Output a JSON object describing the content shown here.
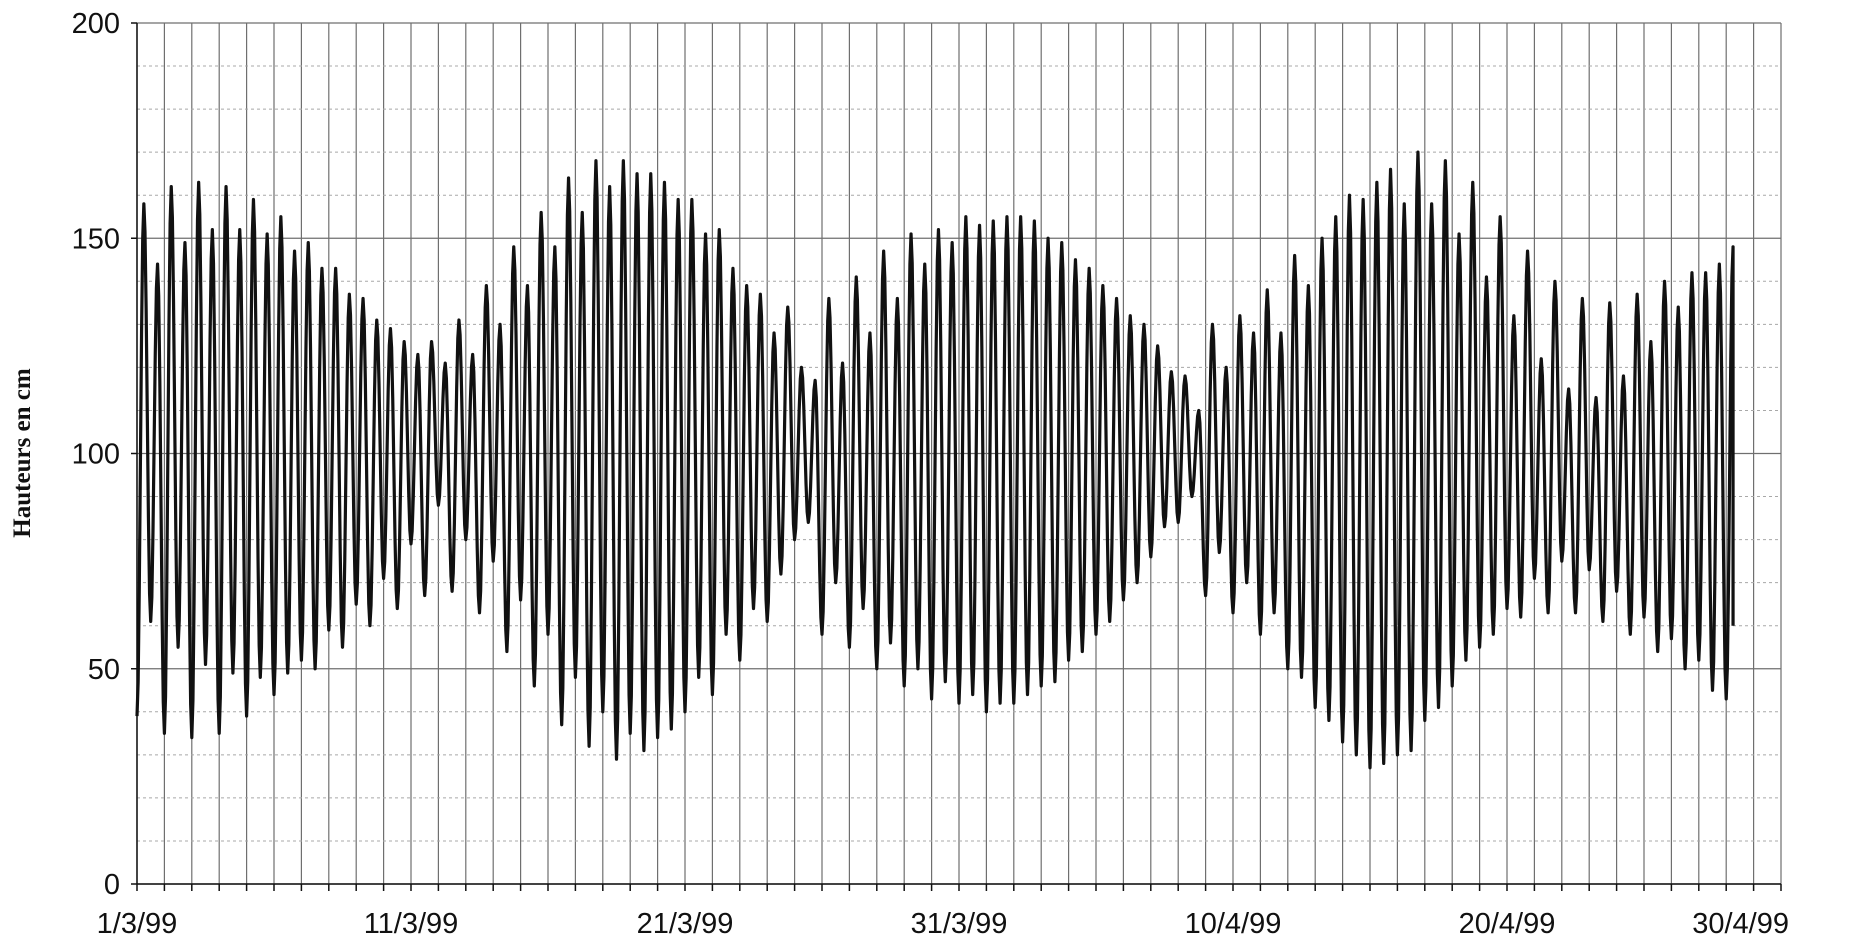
{
  "chart_data": {
    "type": "line",
    "title": "",
    "xlabel": "",
    "ylabel": "Hauteurs en cm",
    "x_tick_labels": [
      "1/3/99",
      "11/3/99",
      "21/3/99",
      "31/3/99",
      "10/4/99",
      "20/4/99",
      "30/4/99"
    ],
    "xlim": [
      "1/3/99",
      "30/4/99"
    ],
    "ylim": [
      0,
      200
    ],
    "y_ticks": [
      0,
      50,
      100,
      150,
      200
    ],
    "grid": true,
    "legend": "none",
    "series_color": "#111111",
    "series": [
      {
        "x_unit": "days since 1/3/99 (00h)",
        "note": "semi-diurnal tide, two high and two low waters per day; extremes read from chart",
        "high_water": [
          [
            0.25,
            158
          ],
          [
            0.75,
            144
          ],
          [
            1.25,
            162
          ],
          [
            1.75,
            149
          ],
          [
            2.25,
            163
          ],
          [
            2.75,
            152
          ],
          [
            3.25,
            162
          ],
          [
            3.75,
            152
          ],
          [
            4.25,
            159
          ],
          [
            4.75,
            151
          ],
          [
            5.25,
            155
          ],
          [
            5.75,
            147
          ],
          [
            6.25,
            149
          ],
          [
            6.75,
            143
          ],
          [
            7.25,
            143
          ],
          [
            7.75,
            137
          ],
          [
            8.25,
            136
          ],
          [
            8.75,
            131
          ],
          [
            9.25,
            129
          ],
          [
            9.75,
            126
          ],
          [
            10.25,
            123
          ],
          [
            10.75,
            126
          ],
          [
            11.25,
            121
          ],
          [
            11.75,
            131
          ],
          [
            12.25,
            123
          ],
          [
            12.75,
            139
          ],
          [
            13.25,
            130
          ],
          [
            13.75,
            148
          ],
          [
            14.25,
            139
          ],
          [
            14.75,
            156
          ],
          [
            15.25,
            148
          ],
          [
            15.75,
            164
          ],
          [
            16.25,
            156
          ],
          [
            16.75,
            168
          ],
          [
            17.25,
            162
          ],
          [
            17.75,
            168
          ],
          [
            18.25,
            165
          ],
          [
            18.75,
            165
          ],
          [
            19.25,
            163
          ],
          [
            19.75,
            159
          ],
          [
            20.25,
            159
          ],
          [
            20.75,
            151
          ],
          [
            21.25,
            152
          ],
          [
            21.75,
            143
          ],
          [
            22.25,
            139
          ],
          [
            22.75,
            137
          ],
          [
            23.25,
            128
          ],
          [
            23.75,
            134
          ],
          [
            24.25,
            120
          ],
          [
            24.75,
            117
          ],
          [
            25.25,
            136
          ],
          [
            25.75,
            121
          ],
          [
            26.25,
            141
          ],
          [
            26.75,
            128
          ],
          [
            27.25,
            147
          ],
          [
            27.75,
            136
          ],
          [
            28.25,
            151
          ],
          [
            28.75,
            144
          ],
          [
            29.25,
            152
          ],
          [
            29.75,
            149
          ],
          [
            30.25,
            155
          ],
          [
            30.75,
            153
          ],
          [
            31.25,
            154
          ],
          [
            31.75,
            155
          ],
          [
            32.25,
            155
          ],
          [
            32.75,
            154
          ],
          [
            33.25,
            150
          ],
          [
            33.75,
            149
          ],
          [
            34.25,
            145
          ],
          [
            34.75,
            143
          ],
          [
            35.25,
            139
          ],
          [
            35.75,
            136
          ],
          [
            36.25,
            132
          ],
          [
            36.75,
            130
          ],
          [
            37.25,
            125
          ],
          [
            37.75,
            119
          ],
          [
            38.25,
            118
          ],
          [
            38.75,
            110
          ],
          [
            39.25,
            130
          ],
          [
            39.75,
            120
          ],
          [
            40.25,
            132
          ],
          [
            40.75,
            128
          ],
          [
            41.25,
            138
          ],
          [
            41.75,
            128
          ],
          [
            42.25,
            146
          ],
          [
            42.75,
            139
          ],
          [
            43.25,
            150
          ],
          [
            43.75,
            155
          ],
          [
            44.25,
            160
          ],
          [
            44.75,
            159
          ],
          [
            45.25,
            163
          ],
          [
            45.75,
            166
          ],
          [
            46.25,
            158
          ],
          [
            46.75,
            170
          ],
          [
            47.25,
            158
          ],
          [
            47.75,
            168
          ],
          [
            48.25,
            151
          ],
          [
            48.75,
            163
          ],
          [
            49.25,
            141
          ],
          [
            49.75,
            155
          ],
          [
            50.25,
            132
          ],
          [
            50.75,
            147
          ],
          [
            51.25,
            122
          ],
          [
            51.75,
            140
          ],
          [
            52.25,
            115
          ],
          [
            52.75,
            136
          ],
          [
            53.25,
            113
          ],
          [
            53.75,
            135
          ],
          [
            54.25,
            118
          ],
          [
            54.75,
            137
          ],
          [
            55.25,
            126
          ],
          [
            55.75,
            140
          ],
          [
            56.25,
            134
          ],
          [
            56.75,
            142
          ],
          [
            57.25,
            142
          ],
          [
            57.75,
            144
          ],
          [
            58.25,
            148
          ]
        ],
        "low_water": [
          [
            0.0,
            39
          ],
          [
            0.5,
            61
          ],
          [
            1.0,
            35
          ],
          [
            1.5,
            55
          ],
          [
            2.0,
            34
          ],
          [
            2.5,
            51
          ],
          [
            3.0,
            35
          ],
          [
            3.5,
            49
          ],
          [
            4.0,
            39
          ],
          [
            4.5,
            48
          ],
          [
            5.0,
            44
          ],
          [
            5.5,
            49
          ],
          [
            6.0,
            52
          ],
          [
            6.5,
            50
          ],
          [
            7.0,
            59
          ],
          [
            7.5,
            55
          ],
          [
            8.0,
            65
          ],
          [
            8.5,
            60
          ],
          [
            9.0,
            71
          ],
          [
            9.5,
            64
          ],
          [
            10.0,
            79
          ],
          [
            10.5,
            67
          ],
          [
            11.0,
            88
          ],
          [
            11.5,
            68
          ],
          [
            12.0,
            80
          ],
          [
            12.5,
            63
          ],
          [
            13.0,
            75
          ],
          [
            13.5,
            54
          ],
          [
            14.0,
            66
          ],
          [
            14.5,
            46
          ],
          [
            15.0,
            58
          ],
          [
            15.5,
            37
          ],
          [
            16.0,
            48
          ],
          [
            16.5,
            32
          ],
          [
            17.0,
            40
          ],
          [
            17.5,
            29
          ],
          [
            18.0,
            35
          ],
          [
            18.5,
            31
          ],
          [
            19.0,
            34
          ],
          [
            19.5,
            36
          ],
          [
            20.0,
            40
          ],
          [
            20.5,
            48
          ],
          [
            21.0,
            44
          ],
          [
            21.5,
            58
          ],
          [
            22.0,
            52
          ],
          [
            22.5,
            64
          ],
          [
            23.0,
            61
          ],
          [
            23.5,
            72
          ],
          [
            24.0,
            80
          ],
          [
            24.5,
            84
          ],
          [
            25.0,
            58
          ],
          [
            25.5,
            70
          ],
          [
            26.0,
            55
          ],
          [
            26.5,
            64
          ],
          [
            27.0,
            50
          ],
          [
            27.5,
            56
          ],
          [
            28.0,
            46
          ],
          [
            28.5,
            50
          ],
          [
            29.0,
            43
          ],
          [
            29.5,
            47
          ],
          [
            30.0,
            42
          ],
          [
            30.5,
            44
          ],
          [
            31.0,
            40
          ],
          [
            31.5,
            42
          ],
          [
            32.0,
            42
          ],
          [
            32.5,
            44
          ],
          [
            33.0,
            46
          ],
          [
            33.5,
            47
          ],
          [
            34.0,
            52
          ],
          [
            34.5,
            54
          ],
          [
            35.0,
            58
          ],
          [
            35.5,
            61
          ],
          [
            36.0,
            66
          ],
          [
            36.5,
            70
          ],
          [
            37.0,
            76
          ],
          [
            37.5,
            83
          ],
          [
            38.0,
            84
          ],
          [
            38.5,
            90
          ],
          [
            39.0,
            67
          ],
          [
            39.5,
            77
          ],
          [
            40.0,
            63
          ],
          [
            40.5,
            70
          ],
          [
            41.0,
            58
          ],
          [
            41.5,
            63
          ],
          [
            42.0,
            50
          ],
          [
            42.5,
            48
          ],
          [
            43.0,
            41
          ],
          [
            43.5,
            38
          ],
          [
            44.0,
            33
          ],
          [
            44.5,
            30
          ],
          [
            45.0,
            27
          ],
          [
            45.5,
            28
          ],
          [
            46.0,
            30
          ],
          [
            46.5,
            31
          ],
          [
            47.0,
            38
          ],
          [
            47.5,
            41
          ],
          [
            48.0,
            46
          ],
          [
            48.5,
            52
          ],
          [
            49.0,
            55
          ],
          [
            49.5,
            58
          ],
          [
            50.0,
            64
          ],
          [
            50.5,
            62
          ],
          [
            51.0,
            71
          ],
          [
            51.5,
            63
          ],
          [
            52.0,
            75
          ],
          [
            52.5,
            63
          ],
          [
            53.0,
            73
          ],
          [
            53.5,
            61
          ],
          [
            54.0,
            68
          ],
          [
            54.5,
            58
          ],
          [
            55.0,
            62
          ],
          [
            55.5,
            54
          ],
          [
            56.0,
            57
          ],
          [
            56.5,
            50
          ],
          [
            57.0,
            52
          ],
          [
            57.5,
            45
          ],
          [
            58.0,
            43
          ],
          [
            58.25,
            60
          ]
        ]
      }
    ]
  }
}
